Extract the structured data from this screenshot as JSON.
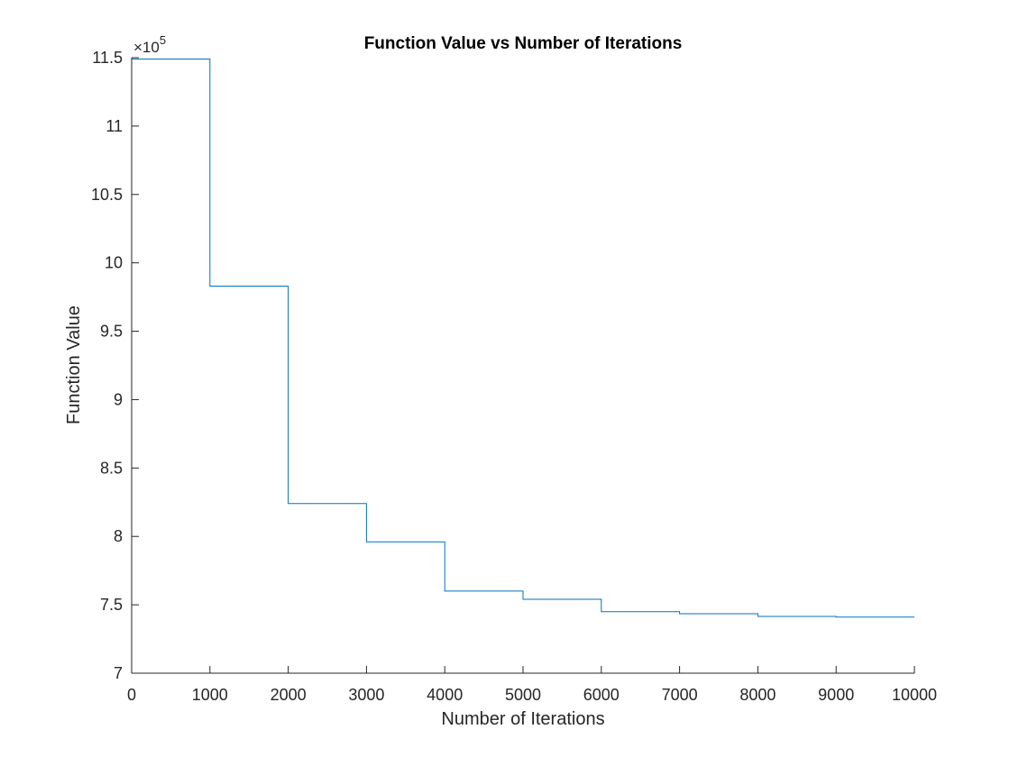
{
  "chart_data": {
    "type": "line",
    "title": "Function Value vs Number of Iterations",
    "xlabel": "Number of Iterations",
    "ylabel": "Function Value",
    "exponent_label": "×10",
    "exponent_power": "5",
    "xlim": [
      0,
      10000
    ],
    "ylim": [
      7,
      11.5
    ],
    "xticks": [
      0,
      1000,
      2000,
      3000,
      4000,
      5000,
      6000,
      7000,
      8000,
      9000,
      10000
    ],
    "xtick_labels": [
      "0",
      "1000",
      "2000",
      "3000",
      "4000",
      "5000",
      "6000",
      "7000",
      "8000",
      "9000",
      "10000"
    ],
    "yticks": [
      7,
      7.5,
      8,
      8.5,
      9,
      9.5,
      10,
      10.5,
      11,
      11.5
    ],
    "ytick_labels": [
      "7",
      "7.5",
      "8",
      "8.5",
      "9",
      "9.5",
      "10",
      "10.5",
      "11",
      "11.5"
    ],
    "grid": false,
    "line_color": "#0072BD",
    "series": [
      {
        "step_x": [
          0,
          1000,
          2000,
          3000,
          4000,
          5000,
          6000,
          7000,
          8000,
          9000,
          10000
        ],
        "step_y": [
          11.49,
          9.83,
          8.24,
          7.96,
          7.6,
          7.54,
          7.45,
          7.435,
          7.415,
          7.41,
          7.41
        ]
      }
    ]
  }
}
